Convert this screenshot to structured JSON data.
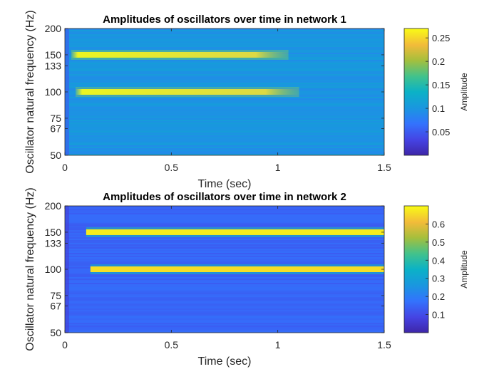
{
  "chart_data": [
    {
      "type": "heatmap",
      "title": "Amplitudes of oscillators over time in network 1",
      "xlabel": "Time (sec)",
      "ylabel": "Oscillator natural frequency (Hz)",
      "xlim": [
        0,
        1.5
      ],
      "ylim": [
        50,
        200
      ],
      "yscale": "log",
      "xticks": [
        "0",
        "0.5",
        "1",
        "1.5"
      ],
      "yticks": [
        "50",
        "67",
        "75",
        "100",
        "133",
        "150",
        "200"
      ],
      "colorbar": {
        "label": "Amplitude",
        "range": [
          0,
          0.27
        ],
        "ticks": [
          "0.05",
          "0.1",
          "0.15",
          "0.2",
          "0.25"
        ]
      },
      "colormap": "parula",
      "bands": [
        {
          "frequency": 150,
          "onset": 0.03,
          "end": 1.05,
          "peak_amplitude": 0.26
        },
        {
          "frequency": 100,
          "onset": 0.05,
          "end": 1.1,
          "peak_amplitude": 0.25
        }
      ],
      "background_amplitude": 0.1
    },
    {
      "type": "heatmap",
      "title": "Amplitudes of oscillators over time in network 2",
      "xlabel": "Time (sec)",
      "ylabel": "Oscillator natural frequency (Hz)",
      "xlim": [
        0,
        1.5
      ],
      "ylim": [
        50,
        200
      ],
      "yscale": "log",
      "xticks": [
        "0",
        "0.5",
        "1",
        "1.5"
      ],
      "yticks": [
        "50",
        "67",
        "75",
        "100",
        "133",
        "150",
        "200"
      ],
      "colorbar": {
        "label": "Amplitude",
        "range": [
          0,
          0.7
        ],
        "ticks": [
          "0.1",
          "0.2",
          "0.3",
          "0.4",
          "0.5",
          "0.6"
        ]
      },
      "colormap": "parula",
      "bands": [
        {
          "frequency": 150,
          "onset": 0.1,
          "end": 1.5,
          "peak_amplitude": 0.68
        },
        {
          "frequency": 100,
          "onset": 0.12,
          "end": 1.5,
          "peak_amplitude": 0.66
        }
      ],
      "background_amplitude": 0.15
    }
  ]
}
